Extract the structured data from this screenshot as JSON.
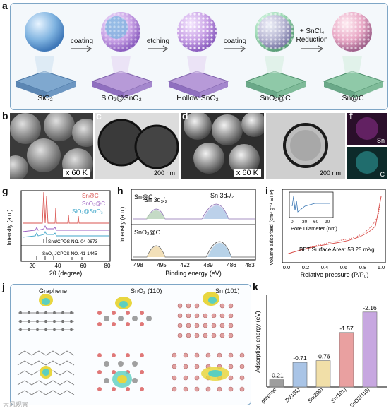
{
  "panel_labels": {
    "a": "a",
    "b": "b",
    "c": "c",
    "d": "d",
    "e": "e",
    "f": "f",
    "g": "g",
    "h": "h",
    "i": "i",
    "j": "j",
    "k": "k"
  },
  "panel_a": {
    "stages": [
      "SiO₂",
      "SiO₂@SnO₂",
      "Hollow SnO₂",
      "SnO₂@C",
      "Sn@C"
    ],
    "steps": [
      "coating",
      "etching",
      "coating",
      "+ SnCl₄\nReduction"
    ]
  },
  "micro": {
    "b_mag": "x  60 K",
    "c_scale": "200 nm",
    "d_mag": "x  60 K",
    "e_scale": "200 nm",
    "f_top": "Sn",
    "f_bottom": "C"
  },
  "panel_g": {
    "ylabel": "Intensity (a.u.)",
    "xlabel": "2θ (degree)",
    "xticks": [
      "20",
      "40",
      "60",
      "80"
    ],
    "legend": [
      "Sn@C",
      "SnO₂@C",
      "SiO₂@SnO₂"
    ],
    "ref1": "Sn JCPDS NO. 04-0673",
    "ref2": "SnO₂ JCPDS NO. 41-1445",
    "colors": [
      "#d9534f",
      "#9b5fc0",
      "#3fa6c9"
    ]
  },
  "panel_h": {
    "top_label": "Sn@C",
    "bottom_label": "SnO₂@C",
    "peak1": "Sn 3d₃/₂",
    "peak2": "Sn 3d₅/₂",
    "ylabel": "Intensity (a.u.)",
    "xlabel": "Binding energy (eV)",
    "xticks": [
      "498",
      "495",
      "492",
      "489",
      "486",
      "483"
    ]
  },
  "panel_i": {
    "ylabel": "Volume adsorbed (cm³ g⁻¹ STP)",
    "xlabel": "Relative pressure (P/P₀)",
    "xticks": [
      "0.0",
      "0.2",
      "0.4",
      "0.6",
      "0.8",
      "1.0"
    ],
    "inset_xlabel": "Pore Diameter (nm)",
    "inset_xticks": [
      "0",
      "30",
      "60",
      "90"
    ],
    "bet": "BET Surface Area: 58.25 m²/g"
  },
  "panel_j": {
    "labels": [
      "Graphene",
      "SnO₂ (110)",
      "Sn (101)"
    ]
  },
  "chart_data": {
    "type": "bar",
    "categories": [
      "graphite",
      "Zn(101)",
      "Sn(200)",
      "Sn(101)",
      "SnO2(110)"
    ],
    "values": [
      -0.21,
      -0.71,
      -0.76,
      -1.57,
      -2.16
    ],
    "value_labels": [
      "-0.21",
      "-0.71",
      "-0.76",
      "-1.57",
      "-2.16"
    ],
    "ylabel": "Adsorption energy (eV)",
    "colors": [
      "#9e9e9e",
      "#a9c4e6",
      "#f1dfa8",
      "#e9a0a0",
      "#c7a7e0"
    ]
  },
  "watermark": "大风观察"
}
